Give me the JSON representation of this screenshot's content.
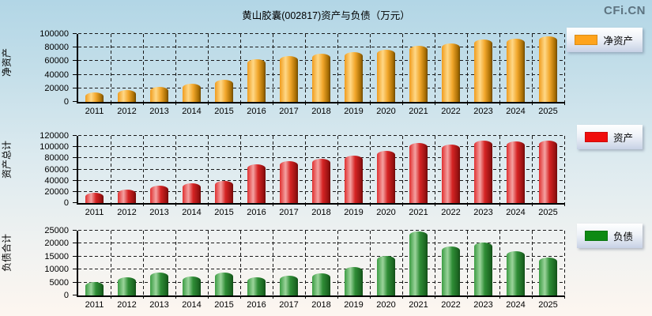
{
  "page": {
    "title": "黄山胶囊(002817)资产与负债（万元）",
    "logo": "CFi.CN",
    "background_top_color": "#b2d6e6",
    "background_bottom_color": "#fdf6f0",
    "unit": "万元"
  },
  "chart_data": [
    {
      "type": "bar",
      "name": "net-assets",
      "ylabel": "净资产",
      "legend": "净资产",
      "color": "#FFA41C",
      "legend_position": "right",
      "grid": "dashed",
      "ylim": [
        0,
        100000
      ],
      "ytick_step": 20000,
      "categories": [
        "2011",
        "2012",
        "2013",
        "2014",
        "2015",
        "2016",
        "2017",
        "2018",
        "2019",
        "2020",
        "2021",
        "2022",
        "2023",
        "2024",
        "2025"
      ],
      "values": [
        14500,
        18000,
        22000,
        27000,
        32000,
        63000,
        67000,
        70500,
        73500,
        76500,
        82000,
        86000,
        91500,
        92500,
        97000
      ]
    },
    {
      "type": "bar",
      "name": "total-assets",
      "ylabel": "资产总计",
      "legend": "资产",
      "color": "#F00C0C",
      "legend_position": "right",
      "grid": "dashed",
      "ylim": [
        0,
        120000
      ],
      "ytick_step": 20000,
      "categories": [
        "2011",
        "2012",
        "2013",
        "2014",
        "2015",
        "2016",
        "2017",
        "2018",
        "2019",
        "2020",
        "2021",
        "2022",
        "2023",
        "2024",
        "2025"
      ],
      "values": [
        18000,
        24500,
        31500,
        35000,
        40000,
        69500,
        75000,
        79000,
        85000,
        93000,
        107000,
        104500,
        111500,
        110500,
        111500
      ]
    },
    {
      "type": "bar",
      "name": "total-liabilities",
      "ylabel": "负债合计",
      "legend": "负债",
      "color": "#0E8A14",
      "legend_position": "right",
      "grid": "dashed",
      "ylim": [
        0,
        25000
      ],
      "ytick_step": 5000,
      "categories": [
        "2011",
        "2012",
        "2013",
        "2014",
        "2015",
        "2016",
        "2017",
        "2018",
        "2019",
        "2020",
        "2021",
        "2022",
        "2023",
        "2024",
        "2025"
      ],
      "values": [
        5200,
        7000,
        8800,
        7200,
        8900,
        7000,
        7500,
        8500,
        11000,
        15300,
        24700,
        18800,
        20500,
        17200,
        14600
      ]
    }
  ]
}
